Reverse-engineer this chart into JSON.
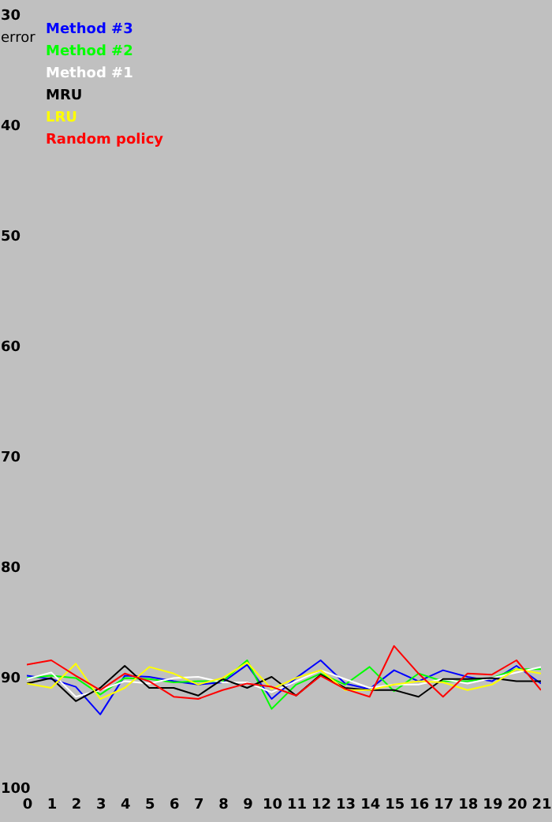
{
  "chart_data": {
    "type": "line",
    "ylabel": "error",
    "x": [
      0,
      1,
      2,
      3,
      4,
      5,
      6,
      7,
      8,
      9,
      10,
      11,
      12,
      13,
      14,
      15,
      16,
      17,
      18,
      19,
      20,
      21
    ],
    "xlim": [
      0,
      21
    ],
    "xticks": [
      0,
      1,
      2,
      3,
      4,
      5,
      6,
      7,
      8,
      9,
      10,
      11,
      12,
      13,
      14,
      15,
      16,
      17,
      18,
      19,
      20,
      21
    ],
    "ylim": [
      100,
      30
    ],
    "yticks": [
      30,
      40,
      50,
      60,
      70,
      80,
      90,
      100
    ],
    "grid": false,
    "legend": "top left",
    "marker": "none",
    "line_style": "solid",
    "series": [
      {
        "name": "Method #3",
        "color": "#0000ff",
        "values": [
          89.9,
          90.2,
          90.9,
          93.4,
          89.9,
          90.0,
          90.4,
          90.7,
          90.5,
          88.9,
          92.0,
          90.1,
          88.5,
          90.6,
          91.1,
          89.4,
          90.4,
          89.4,
          90.0,
          90.4,
          89.0,
          90.6
        ]
      },
      {
        "name": "Method #2",
        "color": "#00ff00",
        "values": [
          90.1,
          89.9,
          90.1,
          91.6,
          90.1,
          90.2,
          90.5,
          90.4,
          90.4,
          88.5,
          92.9,
          90.7,
          89.7,
          90.7,
          89.1,
          91.3,
          89.7,
          90.4,
          90.4,
          90.1,
          89.3,
          89.3
        ]
      },
      {
        "name": "Method #1",
        "color": "#ffffff",
        "values": [
          90.2,
          89.6,
          91.8,
          91.2,
          90.4,
          90.6,
          90.1,
          90.0,
          90.5,
          90.5,
          91.4,
          90.4,
          89.4,
          90.2,
          91.0,
          90.7,
          90.7,
          90.2,
          90.6,
          90.1,
          89.6,
          89.1
        ]
      },
      {
        "name": "MRU",
        "color": "#000000",
        "values": [
          90.6,
          90.1,
          92.2,
          91.0,
          89.0,
          91.0,
          91.0,
          91.7,
          90.2,
          91.0,
          90.0,
          91.7,
          89.8,
          91.0,
          91.2,
          91.2,
          91.8,
          90.2,
          90.2,
          90.1,
          90.4,
          90.4
        ]
      },
      {
        "name": "LRU",
        "color": "#ffff00",
        "values": [
          90.6,
          91.0,
          88.8,
          92.0,
          91.0,
          89.1,
          89.7,
          90.7,
          90.1,
          88.7,
          91.1,
          90.1,
          89.4,
          91.2,
          91.2,
          90.7,
          90.4,
          90.5,
          91.2,
          90.7,
          89.3,
          89.7
        ]
      },
      {
        "name": "Random policy",
        "color": "#ff0000",
        "values": [
          88.9,
          88.5,
          89.9,
          91.2,
          89.7,
          90.4,
          91.8,
          92.0,
          91.2,
          90.6,
          90.9,
          91.7,
          89.9,
          91.1,
          91.8,
          87.2,
          89.7,
          91.8,
          89.7,
          89.8,
          88.5,
          91.2
        ]
      }
    ]
  }
}
